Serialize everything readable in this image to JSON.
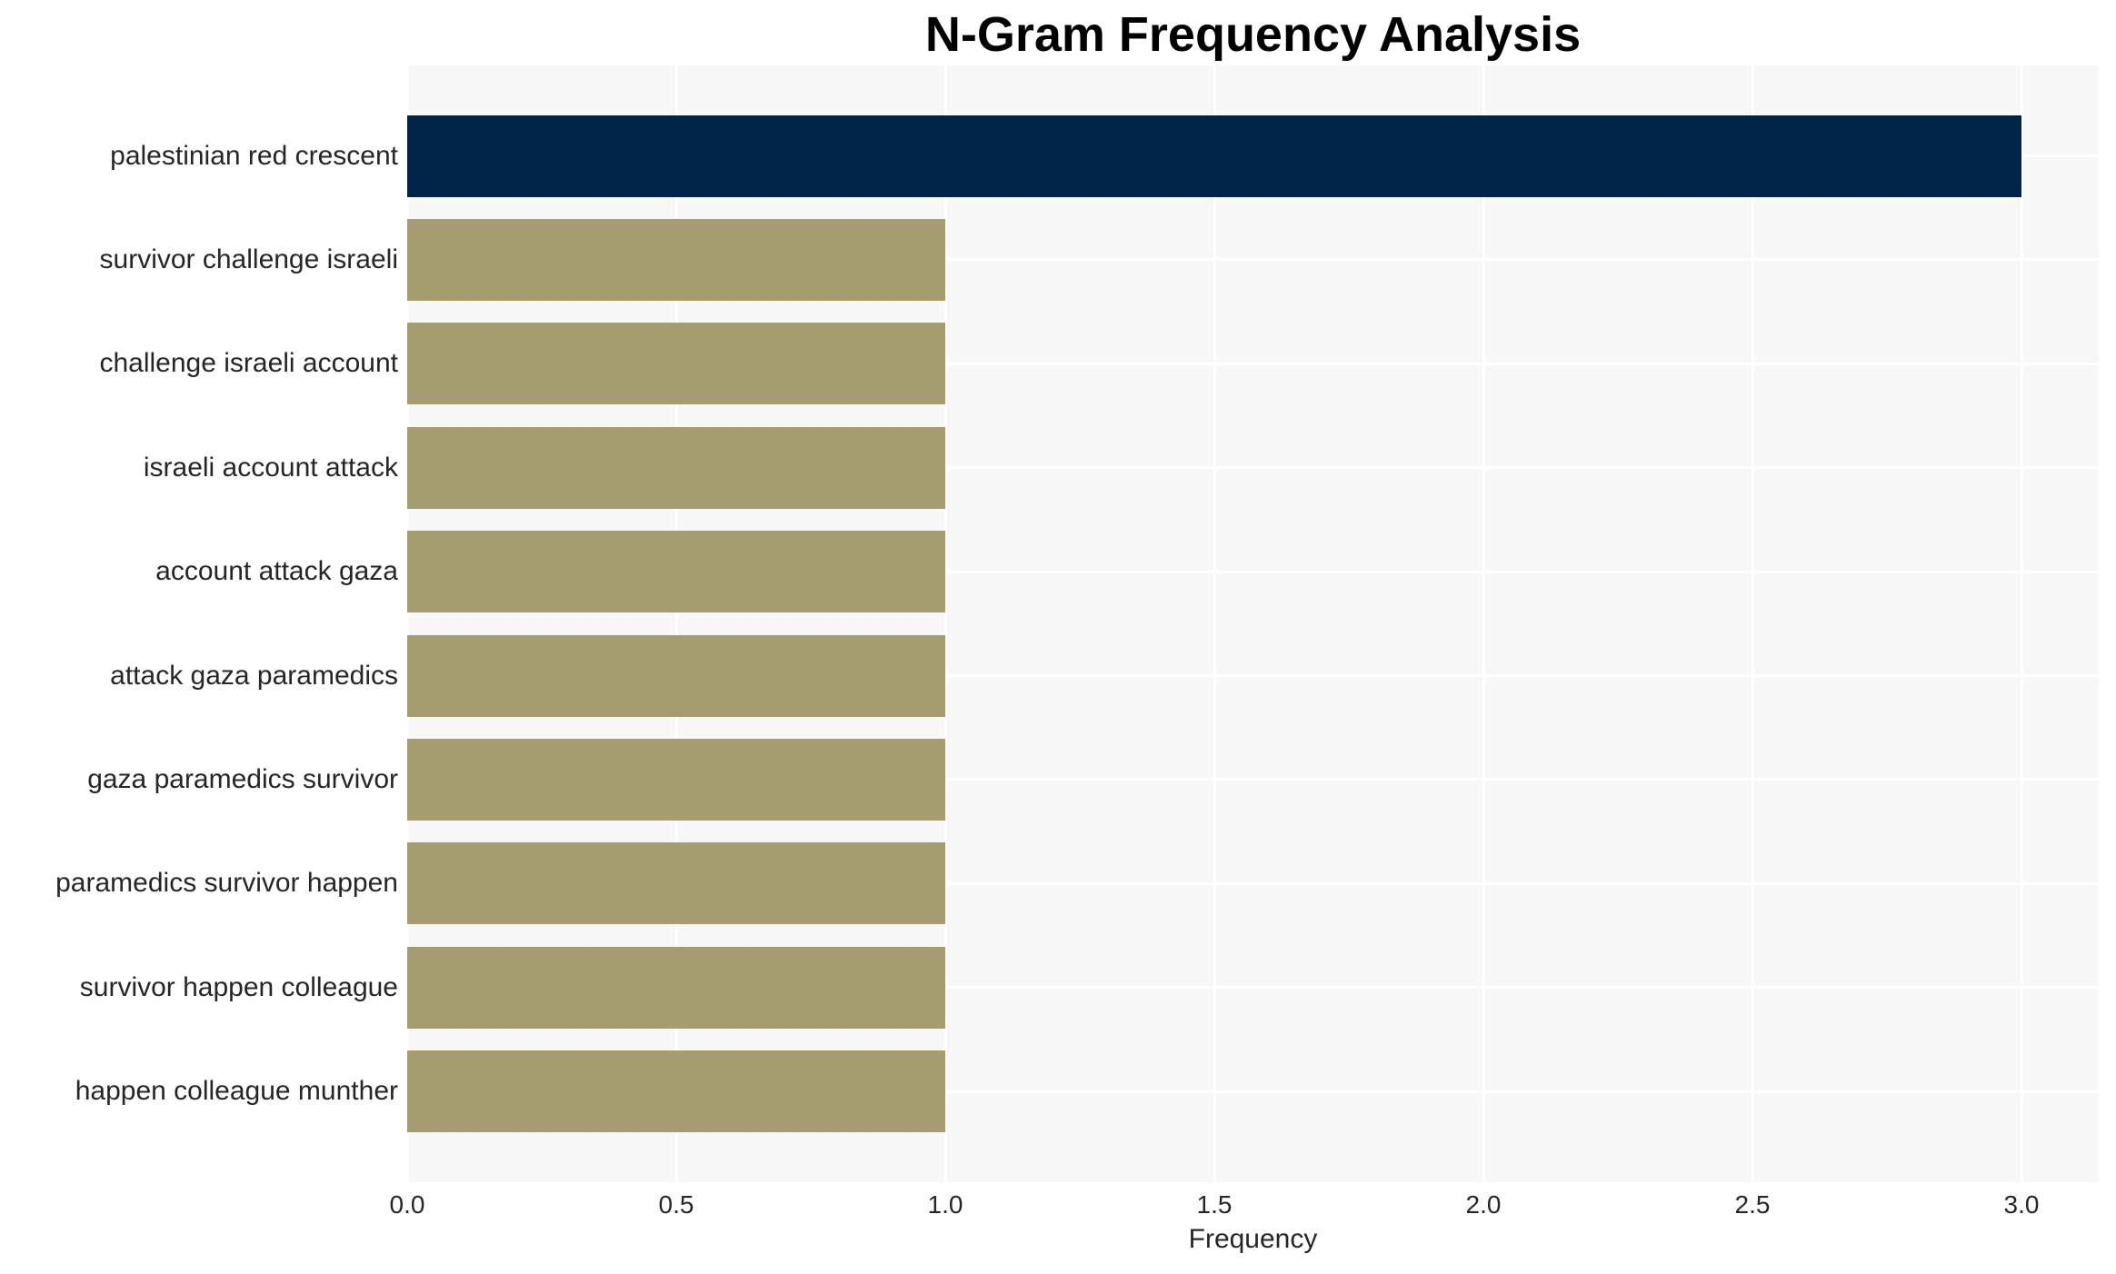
{
  "chart_data": {
    "type": "bar",
    "orientation": "horizontal",
    "title": "N-Gram Frequency Analysis",
    "xlabel": "Frequency",
    "ylabel": "",
    "categories": [
      "palestinian red crescent",
      "survivor challenge israeli",
      "challenge israeli account",
      "israeli account attack",
      "account attack gaza",
      "attack gaza paramedics",
      "gaza paramedics survivor",
      "paramedics survivor happen",
      "survivor happen colleague",
      "happen colleague munther"
    ],
    "values": [
      3,
      1,
      1,
      1,
      1,
      1,
      1,
      1,
      1,
      1
    ],
    "bar_colors": [
      "#02234a",
      "#a59d70",
      "#a59d70",
      "#a59d70",
      "#a59d70",
      "#a59d70",
      "#a59d70",
      "#a59d70",
      "#a59d70",
      "#a59d70"
    ],
    "xticks": [
      0,
      0.5,
      1,
      1.5,
      2,
      2.5,
      3
    ],
    "xtick_labels": [
      "0.0",
      "0.5",
      "1.0",
      "1.5",
      "2.0",
      "2.5",
      "3.0"
    ],
    "xlim": [
      0,
      3.14
    ],
    "grid": true,
    "legend": false,
    "colors": {
      "highlight_bar": "#02234a",
      "default_bar": "#a59d70",
      "plot_bg": "#f7f7f7",
      "grid": "#ffffff",
      "text": "#262626",
      "title": "#000000"
    }
  }
}
